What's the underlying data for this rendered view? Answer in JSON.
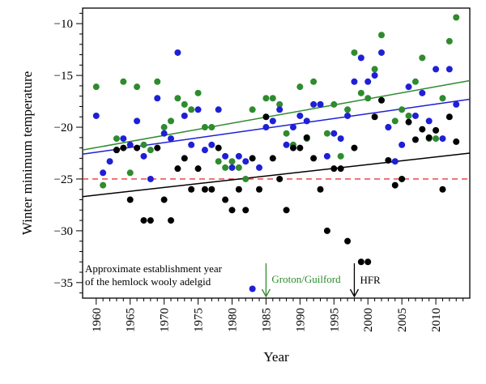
{
  "chart_data": {
    "type": "scatter",
    "xlabel": "Year",
    "ylabel": "Winter minimum temperature",
    "xlim": [
      1958,
      2015
    ],
    "ylim": [
      -36.5,
      -8.5
    ],
    "x_ticks": [
      1960,
      1965,
      1970,
      1975,
      1980,
      1985,
      1990,
      1995,
      2000,
      2005,
      2010
    ],
    "y_ticks": [
      -35,
      -30,
      -25,
      -20,
      -15,
      -10
    ],
    "grid": false,
    "reference_line": {
      "y": -25,
      "color": "#e8383b",
      "style": "dashed"
    },
    "series": [
      {
        "color": "#2e8b2e",
        "points": [
          [
            1960,
            -16.1
          ],
          [
            1961,
            -25.6
          ],
          [
            1963,
            -21.1
          ],
          [
            1964,
            -15.6
          ],
          [
            1965,
            -24.4
          ],
          [
            1966,
            -16.1
          ],
          [
            1967,
            -21.7
          ],
          [
            1968,
            -22.2
          ],
          [
            1969,
            -15.6
          ],
          [
            1970,
            -20.0
          ],
          [
            1971,
            -19.4
          ],
          [
            1972,
            -17.2
          ],
          [
            1973,
            -17.8
          ],
          [
            1974,
            -18.3
          ],
          [
            1975,
            -16.7
          ],
          [
            1976,
            -20.0
          ],
          [
            1977,
            -20.0
          ],
          [
            1978,
            -23.3
          ],
          [
            1979,
            -23.9
          ],
          [
            1980,
            -23.3
          ],
          [
            1981,
            -23.9
          ],
          [
            1982,
            -25.0
          ],
          [
            1983,
            -18.3
          ],
          [
            1985,
            -17.2
          ],
          [
            1986,
            -17.2
          ],
          [
            1987,
            -17.8
          ],
          [
            1988,
            -20.6
          ],
          [
            1989,
            -21.7
          ],
          [
            1990,
            -16.1
          ],
          [
            1991,
            -21.1
          ],
          [
            1992,
            -15.6
          ],
          [
            1993,
            -17.8
          ],
          [
            1994,
            -20.6
          ],
          [
            1995,
            -17.8
          ],
          [
            1996,
            -22.8
          ],
          [
            1997,
            -18.3
          ],
          [
            1998,
            -12.8
          ],
          [
            1999,
            -16.7
          ],
          [
            2000,
            -17.2
          ],
          [
            2001,
            -14.4
          ],
          [
            2002,
            -11.1
          ],
          [
            2003,
            -20.0
          ],
          [
            2004,
            -19.4
          ],
          [
            2005,
            -18.3
          ],
          [
            2006,
            -18.9
          ],
          [
            2007,
            -15.6
          ],
          [
            2008,
            -13.3
          ],
          [
            2009,
            -21.1
          ],
          [
            2010,
            -21.1
          ],
          [
            2011,
            -17.2
          ],
          [
            2012,
            -11.7
          ],
          [
            2013,
            -9.4
          ]
        ],
        "trend": [
          [
            1958,
            -22.2
          ],
          [
            2015,
            -15.5
          ]
        ]
      },
      {
        "color": "#1f1fd6",
        "points": [
          [
            1960,
            -18.9
          ],
          [
            1961,
            -24.4
          ],
          [
            1962,
            -23.3
          ],
          [
            1963,
            -22.2
          ],
          [
            1964,
            -21.1
          ],
          [
            1965,
            -21.7
          ],
          [
            1966,
            -19.4
          ],
          [
            1967,
            -22.8
          ],
          [
            1968,
            -25.0
          ],
          [
            1969,
            -17.2
          ],
          [
            1970,
            -20.6
          ],
          [
            1971,
            -21.1
          ],
          [
            1972,
            -12.8
          ],
          [
            1973,
            -18.9
          ],
          [
            1974,
            -21.7
          ],
          [
            1975,
            -18.3
          ],
          [
            1976,
            -22.2
          ],
          [
            1977,
            -21.7
          ],
          [
            1978,
            -18.3
          ],
          [
            1979,
            -22.8
          ],
          [
            1980,
            -23.9
          ],
          [
            1981,
            -22.8
          ],
          [
            1982,
            -23.3
          ],
          [
            1983,
            -35.6
          ],
          [
            1984,
            -23.9
          ],
          [
            1985,
            -20.0
          ],
          [
            1986,
            -19.4
          ],
          [
            1987,
            -18.3
          ],
          [
            1988,
            -21.7
          ],
          [
            1989,
            -20.0
          ],
          [
            1990,
            -18.9
          ],
          [
            1991,
            -19.4
          ],
          [
            1992,
            -17.8
          ],
          [
            1993,
            -17.8
          ],
          [
            1994,
            -22.8
          ],
          [
            1995,
            -20.6
          ],
          [
            1996,
            -21.1
          ],
          [
            1997,
            -18.9
          ],
          [
            1998,
            -15.6
          ],
          [
            1999,
            -13.3
          ],
          [
            2000,
            -15.6
          ],
          [
            2001,
            -15.0
          ],
          [
            2002,
            -12.8
          ],
          [
            2003,
            -20.0
          ],
          [
            2004,
            -23.3
          ],
          [
            2005,
            -21.7
          ],
          [
            2006,
            -16.1
          ],
          [
            2007,
            -18.9
          ],
          [
            2008,
            -16.7
          ],
          [
            2009,
            -19.4
          ],
          [
            2010,
            -14.4
          ],
          [
            2011,
            -21.1
          ],
          [
            2012,
            -14.4
          ],
          [
            2013,
            -17.8
          ]
        ],
        "trend": [
          [
            1958,
            -22.6
          ],
          [
            2015,
            -17.3
          ]
        ]
      },
      {
        "color": "#000000",
        "points": [
          [
            1963,
            -22.2
          ],
          [
            1964,
            -22.0
          ],
          [
            1965,
            -27.0
          ],
          [
            1966,
            -22.0
          ],
          [
            1967,
            -29.0
          ],
          [
            1968,
            -29.0
          ],
          [
            1969,
            -22.0
          ],
          [
            1970,
            -27.0
          ],
          [
            1971,
            -29.0
          ],
          [
            1972,
            -24.0
          ],
          [
            1973,
            -23.0
          ],
          [
            1974,
            -26.0
          ],
          [
            1975,
            -24.0
          ],
          [
            1976,
            -26.0
          ],
          [
            1977,
            -26.0
          ],
          [
            1978,
            -22.0
          ],
          [
            1979,
            -27.0
          ],
          [
            1980,
            -28.0
          ],
          [
            1981,
            -26.0
          ],
          [
            1982,
            -28.0
          ],
          [
            1983,
            -23.0
          ],
          [
            1984,
            -26.0
          ],
          [
            1985,
            -19.0
          ],
          [
            1986,
            -23.0
          ],
          [
            1987,
            -25.0
          ],
          [
            1988,
            -28.0
          ],
          [
            1989,
            -22.0
          ],
          [
            1990,
            -22.0
          ],
          [
            1991,
            -21.0
          ],
          [
            1992,
            -23.0
          ],
          [
            1993,
            -26.0
          ],
          [
            1994,
            -30.0
          ],
          [
            1995,
            -24.0
          ],
          [
            1996,
            -24.0
          ],
          [
            1997,
            -31.0
          ],
          [
            1998,
            -22.0
          ],
          [
            1999,
            -33.0
          ],
          [
            2000,
            -33.0
          ],
          [
            2001,
            -19.0
          ],
          [
            2002,
            -17.4
          ],
          [
            2003,
            -23.2
          ],
          [
            2004,
            -25.6
          ],
          [
            2005,
            -25.0
          ],
          [
            2006,
            -19.5
          ],
          [
            2007,
            -21.2
          ],
          [
            2008,
            -20.2
          ],
          [
            2009,
            -21.0
          ],
          [
            2010,
            -20.3
          ],
          [
            2011,
            -26.0
          ],
          [
            2012,
            -19.0
          ],
          [
            2013,
            -21.4
          ]
        ],
        "trend": [
          [
            1958,
            -26.7
          ],
          [
            2015,
            -22.5
          ]
        ]
      }
    ],
    "annotations": {
      "establishment_line1": "Approximate establishment year",
      "establishment_line2": "of the hemlock wooly adelgid",
      "arrows": [
        {
          "label": "Groton/Guilford",
          "x": 1985,
          "color": "#2e8b2e"
        },
        {
          "label": "HFR",
          "x": 1998,
          "color": "#000000"
        }
      ]
    }
  }
}
